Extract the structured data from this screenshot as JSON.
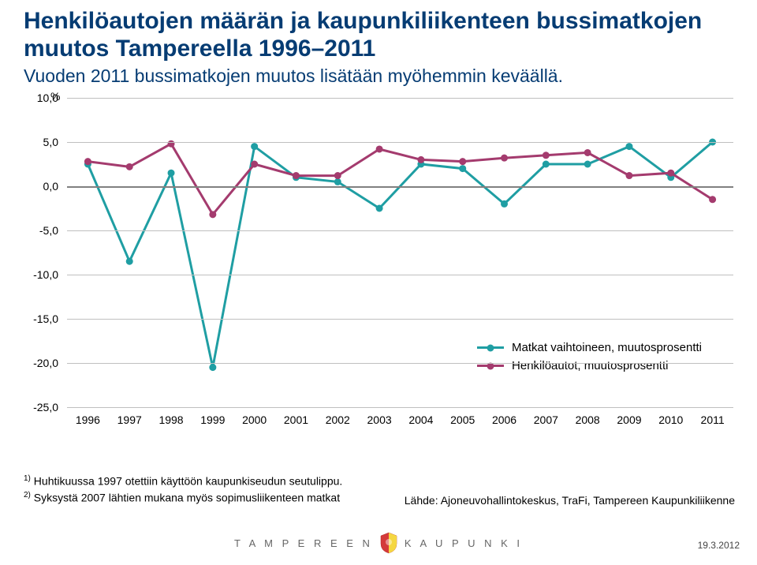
{
  "title": {
    "line1": "Henkilöautojen määrän ja kaupunkiliikenteen bussimatkojen muutos Tampereella 1996–2011",
    "subtitle": "Vuoden 2011 bussimatkojen muutos lisätään myöhemmin keväällä."
  },
  "chart": {
    "type": "line",
    "y_unit": "%",
    "ylim": [
      -25,
      10
    ],
    "ytick_step": 5,
    "y_ticks": [
      10,
      5,
      0,
      -5,
      -10,
      -15,
      -20,
      -25
    ],
    "y_tick_labels": [
      "10,0",
      "5,0",
      "0,0",
      "-5,0",
      "-10,0",
      "-15,0",
      "-20,0",
      "-25,0"
    ],
    "x_years": [
      1996,
      1997,
      1998,
      1999,
      2000,
      2001,
      2002,
      2003,
      2004,
      2005,
      2006,
      2007,
      2008,
      2009,
      2010,
      2011
    ],
    "grid_color": "#bfbfbf",
    "axis_color": "#808080",
    "background_color": "#ffffff",
    "series": [
      {
        "name": "Matkat vaihtoineen, muutosprosentti",
        "color": "#1f9ea3",
        "line_width": 3,
        "marker": "circle",
        "marker_size": 9,
        "values": [
          2.5,
          -8.5,
          1.5,
          -20.5,
          4.5,
          1.0,
          0.5,
          -2.5,
          2.5,
          2.0,
          -2.0,
          2.5,
          2.5,
          4.5,
          1.0,
          5.0
        ],
        "annotations": [
          "1)",
          "2)"
        ]
      },
      {
        "name": "Henkilöautot, muutosprosentti",
        "color": "#a43b6e",
        "line_width": 3,
        "marker": "circle",
        "marker_size": 9,
        "values": [
          2.8,
          2.2,
          4.8,
          -3.2,
          2.5,
          1.2,
          1.2,
          4.2,
          3.0,
          2.8,
          3.2,
          3.5,
          3.8,
          1.2,
          1.5,
          -1.5
        ]
      }
    ],
    "legend_position": "inside-bottom-right",
    "label_fontsize": 14
  },
  "footnotes": {
    "f1_sup": "1)",
    "f1": "Huhtikuussa 1997 otettiin käyttöön kaupunkiseudun seutulippu.",
    "f2_sup": "2)",
    "f2": "Syksystä 2007 lähtien mukana myös sopimusliikenteen matkat"
  },
  "source": "Lähde: Ajoneuvohallintokeskus, TraFi, Tampereen Kaupunkiliikenne",
  "footer": {
    "left": "T A M P E R E E N",
    "right": "K A U P U N K I",
    "date": "19.3.2012"
  },
  "colors": {
    "title": "#063c73",
    "text": "#000000",
    "footer_text": "#666666"
  }
}
